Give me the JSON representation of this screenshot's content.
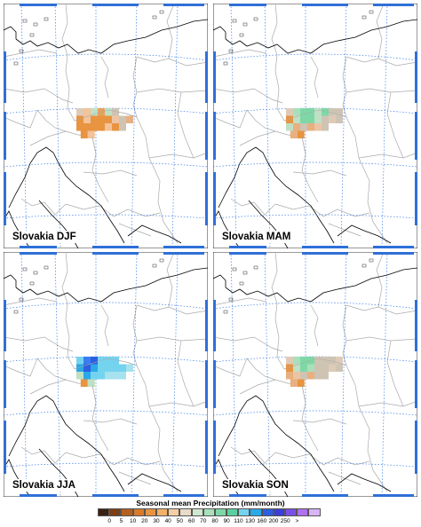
{
  "panels": [
    {
      "label": "Slovakia DJF",
      "cells": [
        [
          "#ddcbb8",
          "#f3c39a",
          "#bfe0c4",
          "#e7a25a",
          "#bfe0c4",
          "#cfc4b4",
          null,
          null
        ],
        [
          "#e89440",
          "#f3c39a",
          "#e89440",
          "#e89440",
          "#e89440",
          "#ecc4a4",
          "#cfc4b4",
          "#e8b080"
        ],
        [
          "#e89440",
          "#e89440",
          "#e89440",
          "#e89440",
          "#f3c39a",
          "#e89440",
          "#cfc4b4",
          null
        ],
        [
          "#e89440",
          "#f3c39a",
          null,
          null,
          null,
          null,
          null,
          null
        ]
      ]
    },
    {
      "label": "Slovakia MAM",
      "cells": [
        [
          "#ddcbb8",
          "#a9e0ba",
          "#7dd8a6",
          "#7dd8a6",
          "#bfe0c4",
          "#7dd8a6",
          "#cfc4b4",
          "#cfc4b4"
        ],
        [
          "#e89440",
          "#bfe0c4",
          "#7dd8a6",
          "#7dd8a6",
          "#bfe0c4",
          "#cfc4b4",
          "#ddcbb8",
          "#cfc4b4"
        ],
        [
          "#bfe0c4",
          "#e8b080",
          "#cfc4b4",
          "#e8b080",
          "#ecc4a4",
          "#cfc4b4",
          null,
          null
        ],
        [
          "#e8b080",
          "#e89440",
          null,
          null,
          null,
          null,
          null,
          null
        ]
      ]
    },
    {
      "label": "Slovakia JJA",
      "cells": [
        [
          "#74d3ee",
          "#3b7df0",
          "#2e5fe0",
          "#74d3ee",
          "#74d3ee",
          "#74d3ee",
          null,
          null
        ],
        [
          "#2aa8e8",
          "#2e5fe0",
          "#2aa8e8",
          "#74d3ee",
          "#74d3ee",
          "#74d3ee",
          "#74d3ee",
          "#a5e2ee"
        ],
        [
          "#bfe0c4",
          "#2aa8e8",
          "#74d3ee",
          "#74d3ee",
          "#a5e2ee",
          "#a5e2ee",
          "#a5e2ee",
          null
        ],
        [
          "#e89440",
          "#bfe0c4",
          null,
          null,
          null,
          null,
          null,
          null
        ]
      ]
    },
    {
      "label": "Slovakia SON",
      "cells": [
        [
          "#ddcbb8",
          "#a9e0ba",
          "#7dd8a6",
          "#7dd8a6",
          "#cfc4b4",
          "#cfc4b4",
          "#cfc4b4",
          "#ddcbb8"
        ],
        [
          "#e89440",
          "#bfe0c4",
          "#7dd8a6",
          "#a9e0ba",
          "#cfc4b4",
          "#cfc4b4",
          "#ddcbb8",
          "#cfc4b4"
        ],
        [
          "#e8b080",
          "#ecc4a4",
          "#cfc4b4",
          "#e8b080",
          "#cfc4b4",
          "#cfc4b4",
          null,
          null
        ],
        [
          "#e8b080",
          "#e89440",
          null,
          null,
          null,
          null,
          null,
          null
        ]
      ]
    }
  ],
  "legend": {
    "title": "Seasonal mean Precipitation (mm/month)",
    "colors": [
      "#3b2112",
      "#7a3f16",
      "#b4601f",
      "#d97a2b",
      "#e89440",
      "#f3b068",
      "#f6cea2",
      "#e9dbc8",
      "#cfe8cf",
      "#a9e0ba",
      "#7dd8a6",
      "#59d0a0",
      "#74d3ee",
      "#2aa8e8",
      "#2e5fe0",
      "#3b3fd8",
      "#7a4fe8",
      "#b070f0",
      "#d9b4f6"
    ],
    "ticks": [
      "0",
      "5",
      "10",
      "20",
      "30",
      "40",
      "50",
      "60",
      "70",
      "80",
      "90",
      "110",
      "130",
      "160",
      "200",
      "250",
      ">"
    ]
  },
  "map_colors": {
    "land_border": "#aaaaaa",
    "coast": "#000000",
    "grid": "#3a7de8",
    "frame": "#2f6fd8"
  }
}
